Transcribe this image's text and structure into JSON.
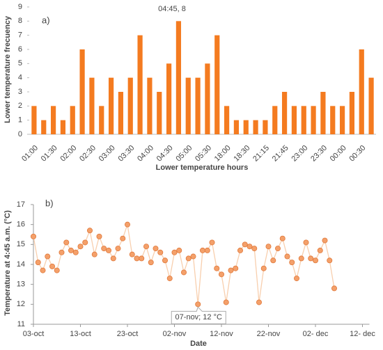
{
  "chart_data": [
    {
      "type": "bar",
      "panel_label": "a)",
      "annotation": "04:45, 8",
      "y_label": "Lower temperature frecuency",
      "x_label": "Lower temperature hours",
      "categories": [
        "01:00",
        null,
        "01:30",
        null,
        "02:00",
        null,
        "02:30",
        null,
        "03:00",
        null,
        "03:30",
        null,
        "04:00",
        null,
        "04:30",
        null,
        "05:00",
        null,
        "05:30",
        null,
        "18:00",
        null,
        "18:30",
        null,
        "21:15",
        null,
        "21:45",
        null,
        "23:00",
        null,
        "23:30",
        null,
        "00:00",
        null,
        "00:30",
        null
      ],
      "values": [
        2,
        1,
        2,
        1,
        2,
        6,
        4,
        2,
        4,
        3,
        4,
        7,
        4,
        3,
        5,
        8,
        4,
        4,
        5,
        7,
        2,
        1,
        1,
        1,
        1,
        2,
        3,
        2,
        2,
        2,
        3,
        2,
        2,
        3,
        6,
        4
      ],
      "color": "#f47b20",
      "ylim": [
        0,
        9
      ],
      "yticks": [
        0,
        1,
        2,
        3,
        4,
        5,
        6,
        7,
        8,
        9
      ]
    },
    {
      "type": "line",
      "panel_label": "b)",
      "annotation": "07-nov; 12 °C",
      "y_label": "Temperature at 4:45 a.m. (°C)",
      "x_label": "Date",
      "categories": [
        "03-oct",
        null,
        null,
        null,
        null,
        null,
        null,
        null,
        null,
        null,
        "13-oct",
        null,
        null,
        null,
        null,
        null,
        null,
        null,
        null,
        null,
        "23-oct",
        null,
        null,
        null,
        null,
        null,
        null,
        null,
        null,
        null,
        "02-nov",
        null,
        null,
        null,
        null,
        null,
        null,
        null,
        null,
        null,
        "12-nov",
        null,
        null,
        null,
        null,
        null,
        null,
        null,
        null,
        null,
        "22-nov",
        null,
        null,
        null,
        null,
        null,
        null,
        null,
        null,
        null,
        "02- dec",
        null,
        null,
        null,
        null,
        null,
        null,
        null,
        null,
        null,
        "12- dec"
      ],
      "values": [
        15.4,
        14.1,
        13.7,
        14.4,
        13.9,
        13.7,
        14.6,
        15.1,
        14.7,
        14.6,
        14.9,
        15.1,
        15.7,
        14.5,
        15.4,
        14.8,
        14.7,
        14.3,
        14.8,
        15.3,
        16.0,
        14.5,
        14.3,
        14.3,
        14.9,
        14.1,
        14.8,
        14.6,
        14.2,
        13.3,
        14.6,
        14.7,
        13.6,
        14.3,
        14.4,
        12.0,
        14.7,
        14.7,
        15.1,
        13.8,
        13.5,
        12.1,
        13.7,
        13.8,
        14.7,
        15.0,
        14.9,
        14.8,
        12.1,
        13.8,
        14.9,
        14.2,
        14.8,
        15.3,
        14.4,
        14.1,
        13.3,
        14.3,
        15.1,
        14.3,
        14.2,
        14.7,
        15.2,
        14.2,
        12.8,
        null,
        null,
        null,
        null,
        null,
        null
      ],
      "color": "#f4a06a",
      "line_color": "#f8cfae",
      "ylim": [
        11,
        17
      ],
      "yticks": [
        11,
        12,
        13,
        14,
        15,
        16,
        17
      ],
      "annotation_index": 35
    }
  ]
}
